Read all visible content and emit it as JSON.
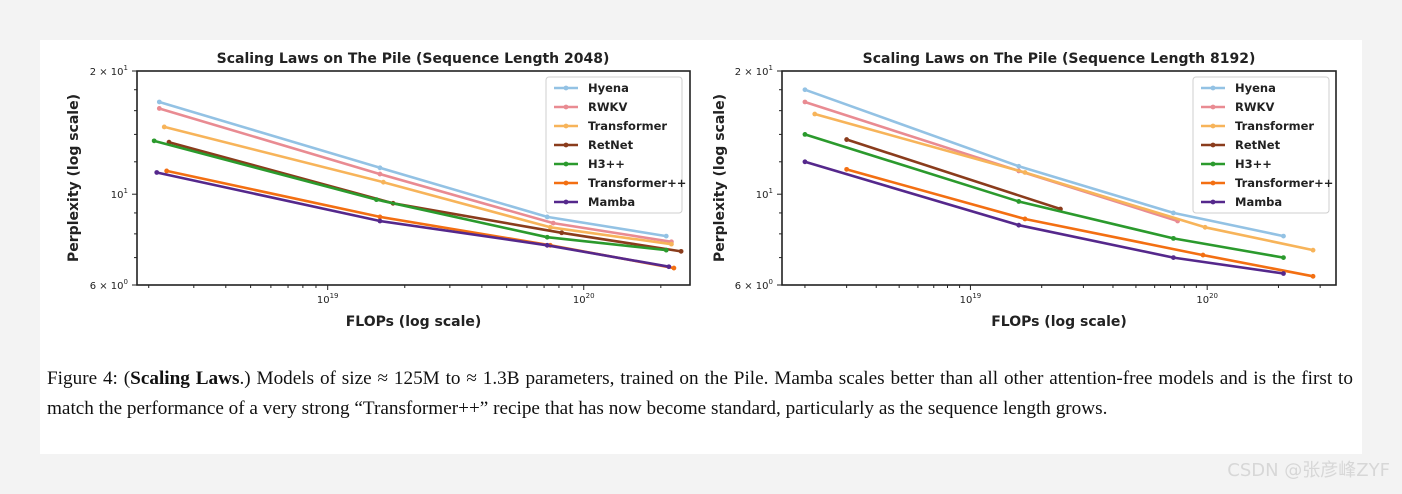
{
  "colors": {
    "Hyena": "#93c2e4",
    "RWKV": "#e98b92",
    "Transformer": "#f7b45a",
    "RetNet": "#8a3c1c",
    "H3++": "#2b9a2d",
    "Transformer++": "#f36f12",
    "Mamba": "#55288c"
  },
  "chart_data": [
    {
      "type": "line",
      "title": "Scaling Laws on The Pile (Sequence Length 2048)",
      "xlabel": "FLOPs (log scale)",
      "ylabel": "Perplexity (log scale)",
      "xscale": "log",
      "yscale": "log",
      "xlim": [
        1.8e+18,
        2.6e+20
      ],
      "ylim": [
        6,
        20
      ],
      "xticks": [
        {
          "value": 1e+19,
          "base": "10",
          "exp": "19"
        },
        {
          "value": 1e+20,
          "base": "10",
          "exp": "20"
        }
      ],
      "yticks": [
        {
          "value": 20,
          "text": "2 × 10",
          "exp": "1"
        },
        {
          "value": 10,
          "text": "10",
          "exp": "1"
        },
        {
          "value": 6,
          "text": "6 × 10",
          "exp": "0"
        }
      ],
      "legend_position": "top-right",
      "series": [
        {
          "name": "Hyena",
          "x": [
            2.2e+18,
            1.6e+19,
            7.2e+19,
            2.1e+20
          ],
          "y": [
            16.8,
            11.6,
            8.8,
            7.9
          ]
        },
        {
          "name": "RWKV",
          "x": [
            2.2e+18,
            1.6e+19,
            7.6e+19,
            2.2e+20
          ],
          "y": [
            16.2,
            11.2,
            8.5,
            7.65
          ]
        },
        {
          "name": "Transformer",
          "x": [
            2.3e+18,
            1.65e+19,
            7.4e+19,
            2.2e+20
          ],
          "y": [
            14.6,
            10.7,
            8.3,
            7.55
          ]
        },
        {
          "name": "RetNet",
          "x": [
            2.4e+18,
            1.8e+19,
            8.2e+19,
            2.4e+20
          ],
          "y": [
            13.4,
            9.5,
            8.05,
            7.25
          ]
        },
        {
          "name": "H3++",
          "x": [
            2.1e+18,
            1.55e+19,
            7.2e+19,
            2.1e+20
          ],
          "y": [
            13.5,
            9.7,
            7.85,
            7.3
          ]
        },
        {
          "name": "Transformer++",
          "x": [
            2.35e+18,
            1.6e+19,
            7.4e+19,
            2.25e+20
          ],
          "y": [
            11.4,
            8.8,
            7.5,
            6.6
          ]
        },
        {
          "name": "Mamba",
          "x": [
            2.15e+18,
            1.6e+19,
            7.2e+19,
            2.15e+20
          ],
          "y": [
            11.3,
            8.6,
            7.5,
            6.65
          ]
        }
      ]
    },
    {
      "type": "line",
      "title": "Scaling Laws on The Pile (Sequence Length 8192)",
      "xlabel": "FLOPs (log scale)",
      "ylabel": "Perplexity (log scale)",
      "xscale": "log",
      "yscale": "log",
      "xlim": [
        1.6e+18,
        3.5e+20
      ],
      "ylim": [
        6,
        20
      ],
      "xticks": [
        {
          "value": 1e+19,
          "base": "10",
          "exp": "19"
        },
        {
          "value": 1e+20,
          "base": "10",
          "exp": "20"
        }
      ],
      "yticks": [
        {
          "value": 20,
          "text": "2 × 10",
          "exp": "1"
        },
        {
          "value": 10,
          "text": "10",
          "exp": "1"
        },
        {
          "value": 6,
          "text": "6 × 10",
          "exp": "0"
        }
      ],
      "legend_position": "top-right",
      "series": [
        {
          "name": "Hyena",
          "x": [
            2e+18,
            1.6e+19,
            7.2e+19,
            2.1e+20
          ],
          "y": [
            18.0,
            11.7,
            9.0,
            7.9
          ]
        },
        {
          "name": "RWKV",
          "x": [
            2e+18,
            1.6e+19,
            7.5e+19
          ],
          "y": [
            16.8,
            11.4,
            8.6
          ]
        },
        {
          "name": "Transformer",
          "x": [
            2.2e+18,
            1.7e+19,
            9.8e+19,
            2.8e+20
          ],
          "y": [
            15.7,
            11.3,
            8.3,
            7.3
          ]
        },
        {
          "name": "RetNet",
          "x": [
            3e+18,
            2.4e+19
          ],
          "y": [
            13.6,
            9.2
          ]
        },
        {
          "name": "H3++",
          "x": [
            2e+18,
            1.6e+19,
            7.2e+19,
            2.1e+20
          ],
          "y": [
            14.0,
            9.6,
            7.8,
            7.0
          ]
        },
        {
          "name": "Transformer++",
          "x": [
            3e+18,
            1.7e+19,
            9.6e+19,
            2.8e+20
          ],
          "y": [
            11.5,
            8.7,
            7.1,
            6.3
          ]
        },
        {
          "name": "Mamba",
          "x": [
            2e+18,
            1.6e+19,
            7.2e+19,
            2.1e+20
          ],
          "y": [
            12.0,
            8.4,
            7.0,
            6.4
          ]
        }
      ]
    }
  ],
  "caption": {
    "label": "Figure 4: (",
    "bold": "Scaling Laws",
    "rest": ".) Models of size ≈ 125M to ≈ 1.3B parameters, trained on the Pile. Mamba scales better than all other attention-free models and is the first to match the performance of a very strong “Transformer++” recipe that has now become standard, particularly as the sequence length grows."
  },
  "watermark": "CSDN @张彦峰ZYF"
}
